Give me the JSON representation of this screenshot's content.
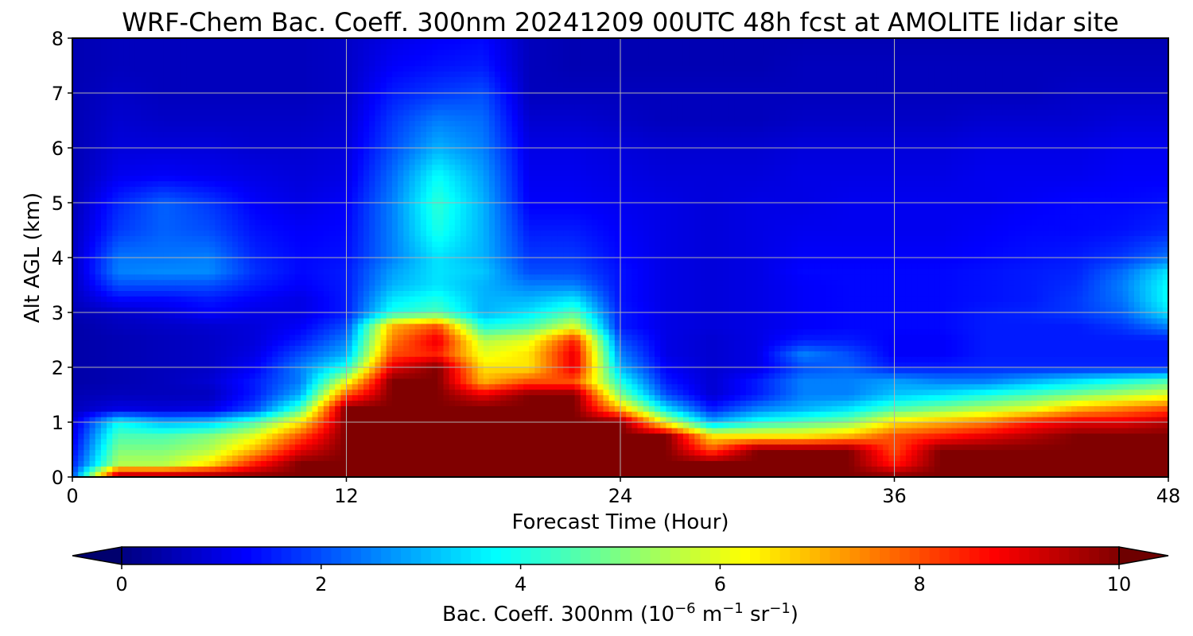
{
  "chart_data": {
    "type": "heatmap",
    "title": "WRF-Chem Bac. Coeff. 300nm  20241209 00UTC 48h fcst at AMOLITE lidar site",
    "xlabel": "Forecast Time (Hour)",
    "ylabel": "Alt AGL (km)",
    "xlim": [
      0,
      48
    ],
    "ylim": [
      0,
      8
    ],
    "xticks": [
      0,
      12,
      24,
      36,
      48
    ],
    "yticks": [
      0,
      1,
      2,
      3,
      4,
      5,
      6,
      7,
      8
    ],
    "grid": true,
    "colormap": "jet",
    "colorbar": {
      "label_prefix": "Bac. Coeff. 300nm  (10",
      "label_exp1": "−6",
      "label_mid1": " m",
      "label_exp2": "−1",
      "label_mid2": " sr",
      "label_exp3": "−1",
      "label_suffix": ")",
      "range": [
        0,
        10
      ],
      "ticks": [
        0,
        2,
        4,
        6,
        8,
        10
      ],
      "extend": "both",
      "orientation": "horizontal",
      "placement": "bottom"
    },
    "x_hours": [
      0,
      2,
      4,
      6,
      8,
      10,
      12,
      14,
      16,
      18,
      20,
      22,
      24,
      26,
      28,
      30,
      32,
      34,
      36,
      38,
      40,
      42,
      44,
      46,
      48
    ],
    "altitude_km": [
      0,
      0.25,
      0.5,
      0.75,
      1,
      1.25,
      1.5,
      1.75,
      2,
      2.25,
      2.5,
      2.75,
      3,
      3.25,
      3.5,
      3.75,
      4,
      4.5,
      5,
      5.5,
      6,
      6.5,
      7,
      7.5,
      8
    ],
    "values": [
      [
        2.0,
        10,
        10,
        10,
        10,
        10,
        10,
        10,
        10,
        10,
        10,
        10,
        10,
        10,
        10,
        10,
        10,
        10,
        10,
        10,
        10,
        10,
        10,
        10,
        10
      ],
      [
        1.5,
        5.5,
        5.5,
        6.5,
        8.5,
        10,
        10,
        10,
        10,
        10,
        10,
        10,
        10,
        10,
        10,
        10,
        10,
        10,
        8.5,
        10,
        10,
        10,
        10,
        10,
        10
      ],
      [
        1.2,
        5.0,
        5.0,
        5.5,
        7.0,
        9.0,
        10,
        10,
        10,
        10,
        10,
        10,
        10,
        10,
        8.0,
        10,
        10,
        10,
        8.0,
        10,
        10,
        10,
        10,
        10,
        10
      ],
      [
        1.0,
        4.5,
        4.5,
        5.0,
        6.0,
        8.0,
        10,
        10,
        10,
        10,
        10,
        10,
        10,
        10,
        6.5,
        6.5,
        6.5,
        7.0,
        8.0,
        8.5,
        9.0,
        9.5,
        10,
        10,
        10
      ],
      [
        0.8,
        3.8,
        3.0,
        3.2,
        4.5,
        6.5,
        10,
        10,
        10,
        10,
        10,
        10,
        10,
        6.0,
        3.0,
        4.0,
        4.5,
        5.0,
        6.5,
        7.0,
        7.5,
        8.5,
        9.0,
        9.0,
        9.5
      ],
      [
        0.6,
        1.0,
        0.9,
        1.0,
        2.0,
        4.5,
        10,
        10,
        10,
        10,
        10,
        10,
        7.0,
        3.5,
        1.5,
        2.5,
        3.0,
        3.5,
        4.5,
        5.0,
        5.5,
        6.0,
        7.0,
        7.5,
        8.0
      ],
      [
        0.5,
        0.6,
        0.6,
        0.6,
        1.5,
        3.0,
        8.0,
        10,
        10,
        9.0,
        10,
        10,
        5.0,
        2.0,
        0.8,
        1.5,
        2.5,
        2.5,
        3.2,
        3.5,
        4.0,
        4.5,
        5.0,
        5.5,
        6.0
      ],
      [
        0.4,
        0.5,
        0.6,
        0.8,
        1.5,
        2.5,
        6.0,
        10,
        10,
        7.0,
        8.0,
        8.0,
        4.0,
        1.5,
        0.8,
        1.5,
        2.5,
        2.5,
        2.8,
        2.5,
        2.5,
        3.0,
        3.5,
        4.0,
        4.5
      ],
      [
        0.4,
        0.5,
        0.6,
        0.7,
        1.2,
        2.5,
        4.0,
        9.0,
        10,
        6.5,
        6.5,
        9.0,
        3.0,
        1.2,
        0.8,
        1.0,
        2.0,
        2.2,
        1.5,
        1.5,
        1.6,
        1.6,
        1.6,
        1.6,
        1.6
      ],
      [
        0.4,
        0.5,
        0.6,
        0.7,
        1.0,
        2.0,
        3.0,
        8.0,
        8.5,
        6.0,
        6.5,
        9.0,
        2.5,
        1.0,
        0.8,
        1.0,
        2.5,
        2.0,
        1.2,
        1.2,
        1.5,
        1.5,
        1.5,
        1.5,
        1.5
      ],
      [
        0.4,
        0.5,
        0.6,
        0.7,
        0.9,
        1.5,
        2.5,
        7.5,
        9.0,
        5.5,
        6.0,
        8.5,
        2.0,
        1.0,
        0.8,
        1.0,
        1.5,
        1.5,
        1.2,
        1.2,
        1.5,
        1.5,
        1.5,
        1.5,
        1.5
      ],
      [
        0.4,
        0.6,
        0.7,
        0.8,
        0.9,
        1.2,
        2.0,
        7.0,
        8.0,
        4.0,
        4.5,
        6.0,
        1.5,
        1.0,
        0.9,
        1.0,
        1.2,
        1.3,
        1.3,
        1.3,
        1.5,
        1.5,
        1.5,
        1.8,
        2.5
      ],
      [
        0.5,
        0.7,
        0.9,
        1.2,
        1.0,
        1.0,
        1.5,
        4.0,
        4.5,
        3.0,
        3.5,
        4.5,
        1.5,
        1.0,
        0.9,
        1.0,
        1.2,
        1.3,
        1.3,
        1.3,
        1.5,
        1.6,
        1.8,
        2.2,
        3.5
      ],
      [
        0.6,
        1.3,
        1.3,
        1.5,
        1.2,
        1.0,
        1.5,
        3.5,
        4.0,
        3.0,
        3.0,
        3.5,
        1.4,
        1.0,
        0.9,
        1.0,
        1.2,
        1.3,
        1.3,
        1.3,
        1.4,
        1.5,
        1.8,
        2.4,
        3.8
      ],
      [
        0.6,
        2.0,
        2.0,
        2.0,
        1.5,
        1.2,
        1.5,
        3.0,
        3.5,
        3.0,
        2.5,
        2.5,
        1.4,
        1.0,
        0.9,
        1.0,
        1.2,
        1.3,
        1.3,
        1.3,
        1.4,
        1.5,
        1.7,
        2.5,
        3.8
      ],
      [
        0.6,
        2.5,
        2.6,
        2.6,
        1.7,
        1.3,
        1.5,
        2.8,
        3.5,
        3.2,
        2.0,
        2.0,
        1.4,
        1.0,
        0.9,
        1.0,
        1.3,
        1.3,
        1.3,
        1.3,
        1.4,
        1.5,
        1.6,
        2.3,
        3.5
      ],
      [
        0.6,
        2.4,
        2.4,
        2.5,
        1.6,
        1.3,
        1.4,
        2.5,
        3.5,
        3.0,
        1.8,
        1.8,
        1.3,
        1.0,
        0.9,
        1.0,
        1.2,
        1.2,
        1.2,
        1.2,
        1.3,
        1.4,
        1.5,
        1.8,
        2.4
      ],
      [
        0.6,
        1.8,
        2.2,
        2.0,
        1.4,
        1.2,
        1.3,
        2.5,
        4.0,
        3.0,
        1.5,
        1.5,
        1.2,
        1.0,
        0.9,
        1.0,
        1.1,
        1.1,
        1.1,
        1.1,
        1.2,
        1.3,
        1.3,
        1.4,
        1.6
      ],
      [
        0.5,
        1.6,
        2.2,
        1.8,
        1.2,
        1.0,
        1.2,
        2.5,
        4.2,
        3.0,
        1.2,
        1.2,
        1.1,
        1.0,
        0.9,
        1.0,
        1.0,
        1.1,
        1.1,
        1.1,
        1.1,
        1.2,
        1.3,
        1.3,
        1.4
      ],
      [
        0.5,
        1.1,
        1.2,
        1.1,
        1.0,
        0.9,
        1.0,
        2.3,
        3.8,
        2.8,
        1.1,
        1.1,
        1.0,
        0.9,
        0.9,
        0.9,
        1.0,
        1.0,
        1.0,
        1.0,
        1.1,
        1.1,
        1.1,
        1.2,
        1.2
      ],
      [
        0.5,
        0.9,
        0.9,
        0.9,
        0.8,
        0.8,
        0.9,
        2.0,
        3.0,
        2.5,
        1.0,
        1.0,
        0.9,
        0.8,
        0.8,
        0.8,
        0.9,
        0.9,
        0.9,
        0.9,
        1.0,
        1.0,
        1.0,
        1.1,
        1.1
      ],
      [
        0.5,
        0.8,
        0.7,
        0.7,
        0.7,
        0.7,
        0.8,
        1.8,
        2.5,
        2.3,
        0.8,
        0.8,
        0.7,
        0.6,
        0.6,
        0.6,
        0.7,
        0.7,
        0.7,
        0.7,
        0.8,
        0.8,
        0.8,
        0.9,
        0.9
      ],
      [
        0.5,
        0.7,
        0.6,
        0.6,
        0.6,
        0.6,
        0.7,
        1.5,
        1.8,
        2.0,
        0.6,
        0.6,
        0.6,
        0.6,
        0.6,
        0.6,
        0.6,
        0.6,
        0.6,
        0.6,
        0.6,
        0.6,
        0.7,
        0.7,
        0.7
      ],
      [
        0.5,
        0.6,
        0.6,
        0.6,
        0.6,
        0.6,
        0.7,
        1.2,
        1.4,
        1.5,
        0.6,
        0.5,
        0.5,
        0.5,
        0.5,
        0.5,
        0.6,
        0.6,
        0.6,
        0.6,
        0.6,
        0.6,
        0.6,
        0.6,
        0.6
      ],
      [
        0.5,
        0.6,
        0.6,
        0.6,
        0.6,
        0.6,
        0.7,
        1.0,
        1.2,
        1.3,
        0.6,
        0.5,
        0.5,
        0.5,
        0.5,
        0.5,
        0.5,
        0.5,
        0.5,
        0.5,
        0.5,
        0.5,
        0.5,
        0.5,
        0.5
      ]
    ]
  }
}
